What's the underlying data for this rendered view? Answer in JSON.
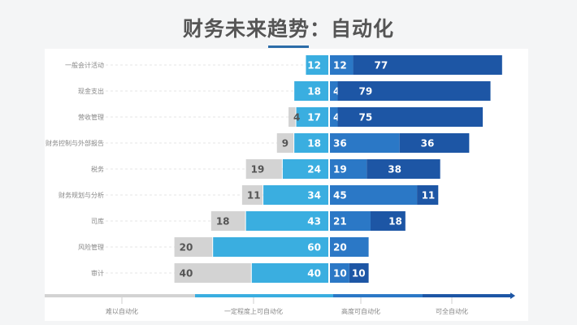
{
  "chart_data": {
    "type": "bar",
    "orientation": "horizontal-diverging-stacked",
    "title": "财务未来趋势：自动化",
    "categories": [
      "一般会计活动",
      "现金支出",
      "营收管理",
      "财务控制与外部报告",
      "税务",
      "财务规划与分析",
      "司库",
      "风险管理",
      "审计"
    ],
    "series": [
      {
        "name": "难以自动化",
        "side": "left",
        "color": "#d3d3d3",
        "text_color": "#555555",
        "values": [
          0,
          0,
          4,
          9,
          19,
          11,
          18,
          20,
          40
        ]
      },
      {
        "name": "一定程度上可自动化",
        "side": "left",
        "color": "#3aaee0",
        "text_color": "#ffffff",
        "values": [
          12,
          18,
          17,
          18,
          24,
          34,
          43,
          60,
          40
        ]
      },
      {
        "name": "高度可自动化",
        "side": "right",
        "color": "#2b78c6",
        "text_color": "#ffffff",
        "values": [
          12,
          4,
          4,
          36,
          19,
          45,
          21,
          20,
          10
        ]
      },
      {
        "name": "可全自动化",
        "side": "right",
        "color": "#1d56a5",
        "text_color": "#ffffff",
        "values": [
          77,
          79,
          75,
          36,
          38,
          11,
          18,
          0,
          10
        ]
      }
    ],
    "grid": false,
    "legend": "bottom-axis"
  }
}
